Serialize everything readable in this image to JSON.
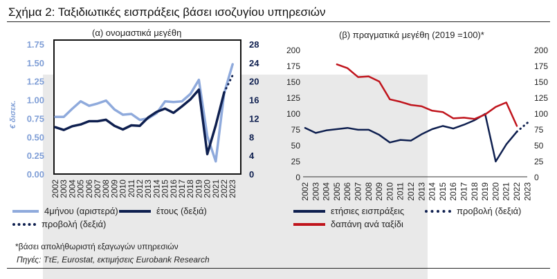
{
  "figure_title": "Σχήμα 2: Ταξιδιωτικές εισπράξεις βάσει ισοζυγίου υπηρεσιών",
  "footnote": "*βάσει απολήθωριστή εξαγωγών υπηρεσιών",
  "source": "Πηγές: TτΕ, Eurostat, εκτιμήσεις Eurobank Research",
  "chart_data": [
    {
      "type": "line",
      "title": "(α) ονομαστικά μεγέθη",
      "ylabel": "€ δισεκ.",
      "categories": [
        "2002",
        "2003",
        "2004",
        "2005",
        "2006",
        "2007",
        "2008",
        "2009",
        "2010",
        "2011",
        "2012",
        "2013",
        "2014",
        "2015",
        "2016",
        "2017",
        "2018",
        "2019",
        "2020",
        "2021",
        "2022",
        "2023"
      ],
      "ylim_left": [
        0,
        1.75
      ],
      "yticks_left": [
        "0.00",
        "0.25",
        "0.50",
        "0.75",
        "1.00",
        "1.25",
        "1.50",
        "1.75"
      ],
      "ylim_right": [
        0,
        28
      ],
      "yticks_right": [
        "0",
        "4",
        "8",
        "12",
        "16",
        "20",
        "24",
        "28"
      ],
      "series": [
        {
          "name": "4μήνου (αριστερά)",
          "axis": "left",
          "color": "#8faadc",
          "style": "solid",
          "x": [
            "2002",
            "2003",
            "2004",
            "2005",
            "2006",
            "2007",
            "2008",
            "2009",
            "2010",
            "2011",
            "2012",
            "2013",
            "2014",
            "2015",
            "2016",
            "2017",
            "2018",
            "2019",
            "2020",
            "2021",
            "2022",
            "2023"
          ],
          "values": [
            0.77,
            0.77,
            0.88,
            0.98,
            0.92,
            0.95,
            0.99,
            0.87,
            0.8,
            0.81,
            0.73,
            0.75,
            0.82,
            0.98,
            0.97,
            0.98,
            1.08,
            1.27,
            0.51,
            0.17,
            1.09,
            1.48
          ]
        },
        {
          "name": "έτους (δεξιά)",
          "axis": "right",
          "color": "#0e1f4f",
          "style": "solid",
          "x": [
            "2002",
            "2003",
            "2004",
            "2005",
            "2006",
            "2007",
            "2008",
            "2009",
            "2010",
            "2011",
            "2012",
            "2013",
            "2014",
            "2015",
            "2016",
            "2017",
            "2018",
            "2019",
            "2020",
            "2021",
            "2022"
          ],
          "values": [
            10.1,
            9.5,
            10.3,
            10.7,
            11.4,
            11.4,
            11.7,
            10.4,
            9.6,
            10.5,
            10.4,
            12.2,
            13.4,
            14.1,
            13.2,
            14.6,
            16.1,
            18.2,
            4.3,
            10.5,
            17.6
          ]
        },
        {
          "name": "προβολή (δεξιά)",
          "axis": "right",
          "color": "#0e1f4f",
          "style": "dotted",
          "x": [
            "2022",
            "2023"
          ],
          "values": [
            17.6,
            21.3
          ]
        }
      ]
    },
    {
      "type": "line",
      "title": "(β) πραγματικά μεγέθη (2019 =100)*",
      "categories": [
        "2002",
        "2003",
        "2004",
        "2005",
        "2006",
        "2007",
        "2008",
        "2009",
        "2010",
        "2011",
        "2012",
        "2013",
        "2014",
        "2015",
        "2016",
        "2017",
        "2018",
        "2019",
        "2020",
        "2021",
        "2022",
        "2023"
      ],
      "ylim_left": [
        0,
        200
      ],
      "yticks_left": [
        "0",
        "25",
        "50",
        "75",
        "100",
        "125",
        "150",
        "175",
        "200"
      ],
      "ylim_right": [
        0,
        200
      ],
      "yticks_right": [
        "0",
        "25",
        "50",
        "75",
        "100",
        "125",
        "150",
        "175",
        "200"
      ],
      "series": [
        {
          "name": "ετήσιες εισπράξεις",
          "axis": "left",
          "color": "#0e1f4f",
          "style": "solid",
          "x": [
            "2002",
            "2003",
            "2004",
            "2005",
            "2006",
            "2007",
            "2008",
            "2009",
            "2010",
            "2011",
            "2012",
            "2013",
            "2014",
            "2015",
            "2016",
            "2017",
            "2018",
            "2019",
            "2020",
            "2021",
            "2022"
          ],
          "values": [
            77,
            69,
            73,
            75,
            77,
            74,
            74,
            66,
            54,
            58,
            57,
            67,
            75,
            80,
            76,
            82,
            89,
            99,
            24,
            51,
            71
          ]
        },
        {
          "name": "προβολή (δεξιά)",
          "axis": "left",
          "color": "#0e1f4f",
          "style": "dotted",
          "x": [
            "2022",
            "2023"
          ],
          "values": [
            71,
            85
          ]
        },
        {
          "name": "δαπάνη ανά ταξίδι",
          "axis": "right",
          "color": "#c0141c",
          "style": "solid",
          "x": [
            "2005",
            "2006",
            "2007",
            "2008",
            "2009",
            "2010",
            "2011",
            "2012",
            "2013",
            "2014",
            "2015",
            "2016",
            "2017",
            "2018",
            "2019",
            "2020",
            "2021",
            "2022"
          ],
          "values": [
            177,
            171,
            157,
            158,
            150,
            122,
            118,
            113,
            111,
            104,
            102,
            92,
            93,
            91,
            98,
            110,
            117,
            80
          ]
        }
      ]
    }
  ]
}
